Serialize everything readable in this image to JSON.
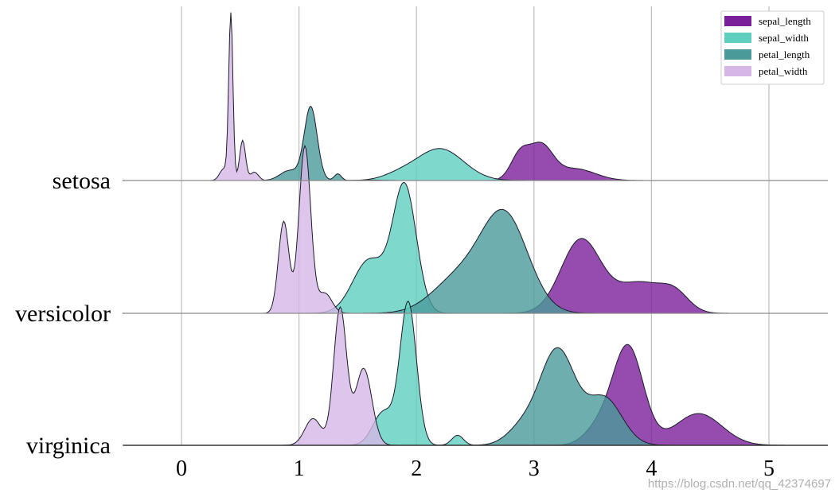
{
  "chart_data": {
    "type": "area",
    "subtype": "ridgeline-kde",
    "title": "",
    "xlabel": "",
    "ylabel": "",
    "xlim": [
      -0.5,
      5.5
    ],
    "x_ticks": [
      0,
      1,
      2,
      3,
      4,
      5
    ],
    "x_tick_labels": [
      "0",
      "1",
      "2",
      "3",
      "4",
      "5"
    ],
    "grid": "vertical",
    "legend_position": "top-right",
    "categories": [
      "setosa",
      "versicolor",
      "virginica"
    ],
    "series": [
      {
        "name": "sepal_length",
        "color": "#7a1f9a"
      },
      {
        "name": "sepal_width",
        "color": "#5ecfbf"
      },
      {
        "name": "petal_length",
        "color": "#4a9a9a"
      },
      {
        "name": "petal_width",
        "color": "#d6b6e6"
      }
    ],
    "curves": [
      {
        "category": "setosa",
        "series": "sepal_length",
        "components": [
          [
            2.88,
            0.08,
            0.15
          ],
          [
            3.06,
            0.1,
            0.2
          ],
          [
            3.35,
            0.17,
            0.07
          ]
        ]
      },
      {
        "category": "setosa",
        "series": "sepal_width",
        "components": [
          [
            2.2,
            0.2,
            0.19
          ],
          [
            1.85,
            0.14,
            0.03
          ]
        ]
      },
      {
        "category": "setosa",
        "series": "petal_length",
        "components": [
          [
            1.1,
            0.055,
            0.44
          ],
          [
            0.92,
            0.08,
            0.06
          ],
          [
            1.33,
            0.03,
            0.04
          ],
          [
            1.6,
            0.1,
            0.003
          ]
        ]
      },
      {
        "category": "setosa",
        "series": "petal_width",
        "components": [
          [
            0.42,
            0.018,
            0.99
          ],
          [
            0.52,
            0.025,
            0.24
          ],
          [
            0.36,
            0.035,
            0.07
          ],
          [
            0.62,
            0.035,
            0.05
          ]
        ]
      },
      {
        "category": "versicolor",
        "series": "sepal_length",
        "components": [
          [
            3.4,
            0.17,
            0.44
          ],
          [
            3.9,
            0.2,
            0.18
          ],
          [
            4.2,
            0.12,
            0.1
          ]
        ]
      },
      {
        "category": "versicolor",
        "series": "sepal_width",
        "components": [
          [
            1.9,
            0.1,
            0.75
          ],
          [
            1.6,
            0.14,
            0.32
          ]
        ]
      },
      {
        "category": "versicolor",
        "series": "petal_length",
        "components": [
          [
            2.75,
            0.2,
            0.58
          ],
          [
            2.35,
            0.22,
            0.2
          ]
        ]
      },
      {
        "category": "versicolor",
        "series": "petal_width",
        "components": [
          [
            1.05,
            0.05,
            1.0
          ],
          [
            0.87,
            0.045,
            0.55
          ],
          [
            1.22,
            0.06,
            0.12
          ]
        ]
      },
      {
        "category": "virginica",
        "series": "sepal_length",
        "components": [
          [
            3.8,
            0.13,
            0.59
          ],
          [
            4.4,
            0.2,
            0.19
          ],
          [
            3.55,
            0.12,
            0.1
          ]
        ]
      },
      {
        "category": "virginica",
        "series": "sepal_width",
        "components": [
          [
            1.93,
            0.07,
            0.85
          ],
          [
            1.72,
            0.09,
            0.2
          ],
          [
            2.35,
            0.05,
            0.06
          ]
        ]
      },
      {
        "category": "virginica",
        "series": "petal_length",
        "components": [
          [
            3.2,
            0.15,
            0.57
          ],
          [
            3.6,
            0.15,
            0.28
          ],
          [
            2.9,
            0.13,
            0.1
          ]
        ]
      },
      {
        "category": "virginica",
        "series": "petal_width",
        "components": [
          [
            1.35,
            0.055,
            0.82
          ],
          [
            1.55,
            0.07,
            0.46
          ],
          [
            1.12,
            0.07,
            0.16
          ]
        ]
      }
    ]
  },
  "watermark": "https://blog.csdn.net/qq_42374697"
}
